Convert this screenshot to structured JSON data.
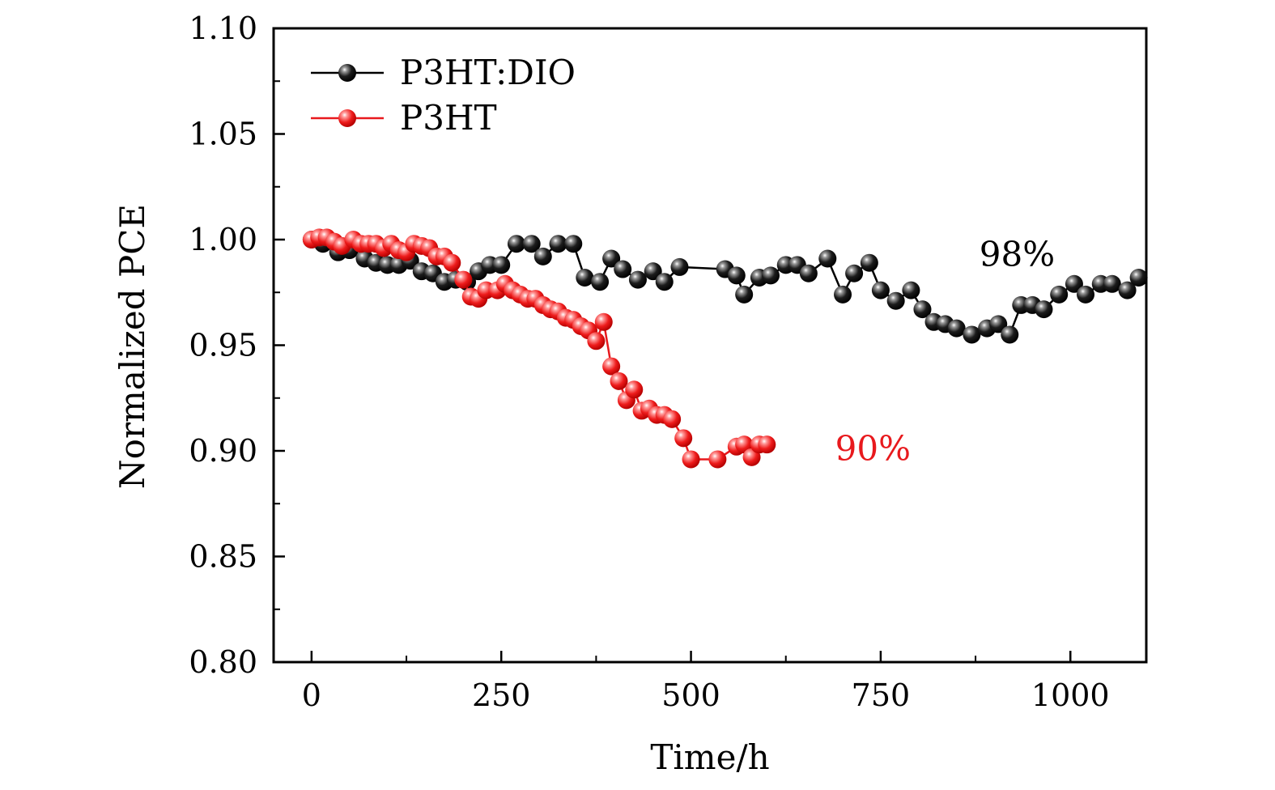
{
  "chart_data": {
    "type": "scatter",
    "xlabel": "Time/h",
    "ylabel": "Normalized PCE",
    "xlim": [
      -50,
      1100
    ],
    "ylim": [
      0.8,
      1.1
    ],
    "x_ticks": [
      0,
      250,
      500,
      750,
      1000
    ],
    "y_ticks": [
      0.8,
      0.85,
      0.9,
      0.95,
      1.0,
      1.05,
      1.1
    ],
    "x_tick_labels": [
      "0",
      "250",
      "500",
      "750",
      "1000"
    ],
    "y_tick_labels": [
      "0.80",
      "0.85",
      "0.90",
      "0.95",
      "1.00",
      "1.05",
      "1.10"
    ],
    "grid": false,
    "legend_position": "top-left",
    "series": [
      {
        "name": "P3HT:DIO",
        "color": "#000000",
        "x": [
          0,
          15,
          35,
          50,
          70,
          85,
          100,
          115,
          130,
          145,
          160,
          175,
          190,
          205,
          220,
          235,
          250,
          270,
          290,
          305,
          325,
          345,
          360,
          380,
          395,
          410,
          430,
          450,
          465,
          485,
          545,
          560,
          570,
          590,
          605,
          625,
          640,
          655,
          680,
          700,
          715,
          735,
          750,
          770,
          790,
          805,
          820,
          835,
          850,
          870,
          890,
          905,
          920,
          935,
          950,
          965,
          985,
          1005,
          1020,
          1040,
          1055,
          1075,
          1090
        ],
        "y": [
          1.0,
          0.998,
          0.994,
          0.995,
          0.991,
          0.989,
          0.988,
          0.988,
          0.99,
          0.985,
          0.984,
          0.98,
          0.981,
          0.98,
          0.985,
          0.988,
          0.988,
          0.998,
          0.998,
          0.992,
          0.998,
          0.998,
          0.982,
          0.98,
          0.991,
          0.986,
          0.981,
          0.985,
          0.98,
          0.987,
          0.986,
          0.983,
          0.974,
          0.982,
          0.983,
          0.988,
          0.988,
          0.984,
          0.991,
          0.974,
          0.984,
          0.989,
          0.976,
          0.971,
          0.976,
          0.967,
          0.961,
          0.96,
          0.958,
          0.955,
          0.958,
          0.96,
          0.955,
          0.969,
          0.969,
          0.967,
          0.974,
          0.979,
          0.974,
          0.979,
          0.979,
          0.976,
          0.982
        ]
      },
      {
        "name": "P3HT",
        "color": "#e8191d",
        "x": [
          0,
          10,
          20,
          30,
          40,
          55,
          65,
          75,
          85,
          95,
          105,
          115,
          125,
          135,
          145,
          155,
          165,
          175,
          185,
          200,
          210,
          220,
          230,
          245,
          255,
          265,
          275,
          285,
          295,
          305,
          315,
          325,
          335,
          345,
          355,
          365,
          375,
          385,
          395,
          405,
          415,
          425,
          435,
          445,
          455,
          465,
          475,
          490,
          500,
          535,
          560,
          570,
          580,
          590,
          600
        ],
        "y": [
          1.0,
          1.001,
          1.001,
          0.999,
          0.997,
          1.0,
          0.998,
          0.998,
          0.998,
          0.996,
          0.998,
          0.995,
          0.994,
          0.998,
          0.997,
          0.996,
          0.992,
          0.992,
          0.989,
          0.981,
          0.973,
          0.972,
          0.976,
          0.976,
          0.979,
          0.976,
          0.974,
          0.972,
          0.972,
          0.969,
          0.967,
          0.966,
          0.963,
          0.962,
          0.959,
          0.957,
          0.952,
          0.961,
          0.94,
          0.933,
          0.924,
          0.929,
          0.919,
          0.92,
          0.917,
          0.917,
          0.915,
          0.906,
          0.896,
          0.896,
          0.902,
          0.903,
          0.897,
          0.903,
          0.903
        ]
      }
    ],
    "annotations": [
      {
        "text": "98%",
        "x": 880,
        "y": 0.993,
        "color": "#000000"
      },
      {
        "text": "90%",
        "x": 690,
        "y": 0.901,
        "color": "#e8191d"
      }
    ]
  }
}
